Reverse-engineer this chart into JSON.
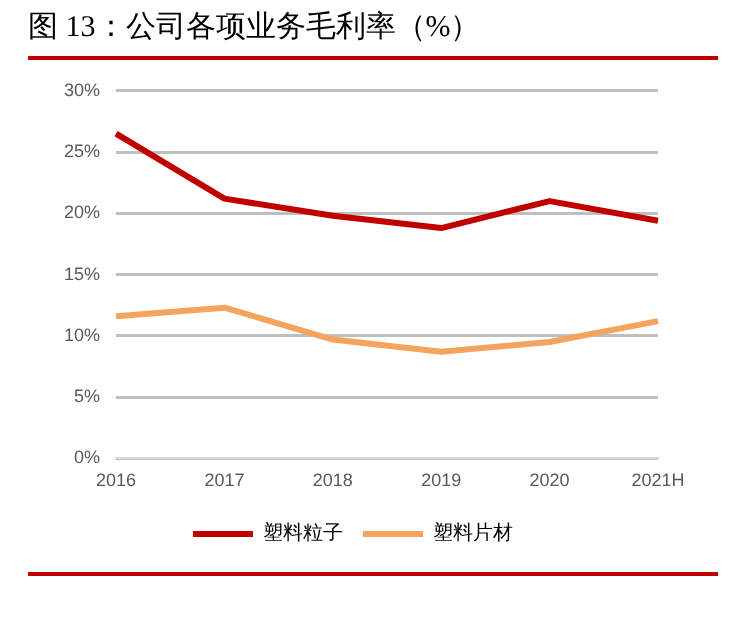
{
  "chart_data": {
    "type": "line",
    "title": "图 13：公司各项业务毛利率（%）",
    "categories": [
      "2016",
      "2017",
      "2018",
      "2019",
      "2020",
      "2021H"
    ],
    "series": [
      {
        "name": "塑料粒子",
        "color": "#c00000",
        "values": [
          26.5,
          21.2,
          19.8,
          18.8,
          21.0,
          19.4
        ]
      },
      {
        "name": "塑料片材",
        "color": "#f4a460",
        "values": [
          11.6,
          12.3,
          9.7,
          8.7,
          9.5,
          11.2
        ]
      }
    ],
    "ylim": [
      0,
      30
    ],
    "yticks": [
      {
        "value": 0,
        "label": "0%"
      },
      {
        "value": 5,
        "label": "5%"
      },
      {
        "value": 10,
        "label": "10%"
      },
      {
        "value": 15,
        "label": "15%"
      },
      {
        "value": 20,
        "label": "20%"
      },
      {
        "value": 25,
        "label": "25%"
      },
      {
        "value": 30,
        "label": "30%"
      }
    ],
    "grid": "y",
    "legend": "bottom",
    "marker": "none",
    "line_style": "solid"
  }
}
